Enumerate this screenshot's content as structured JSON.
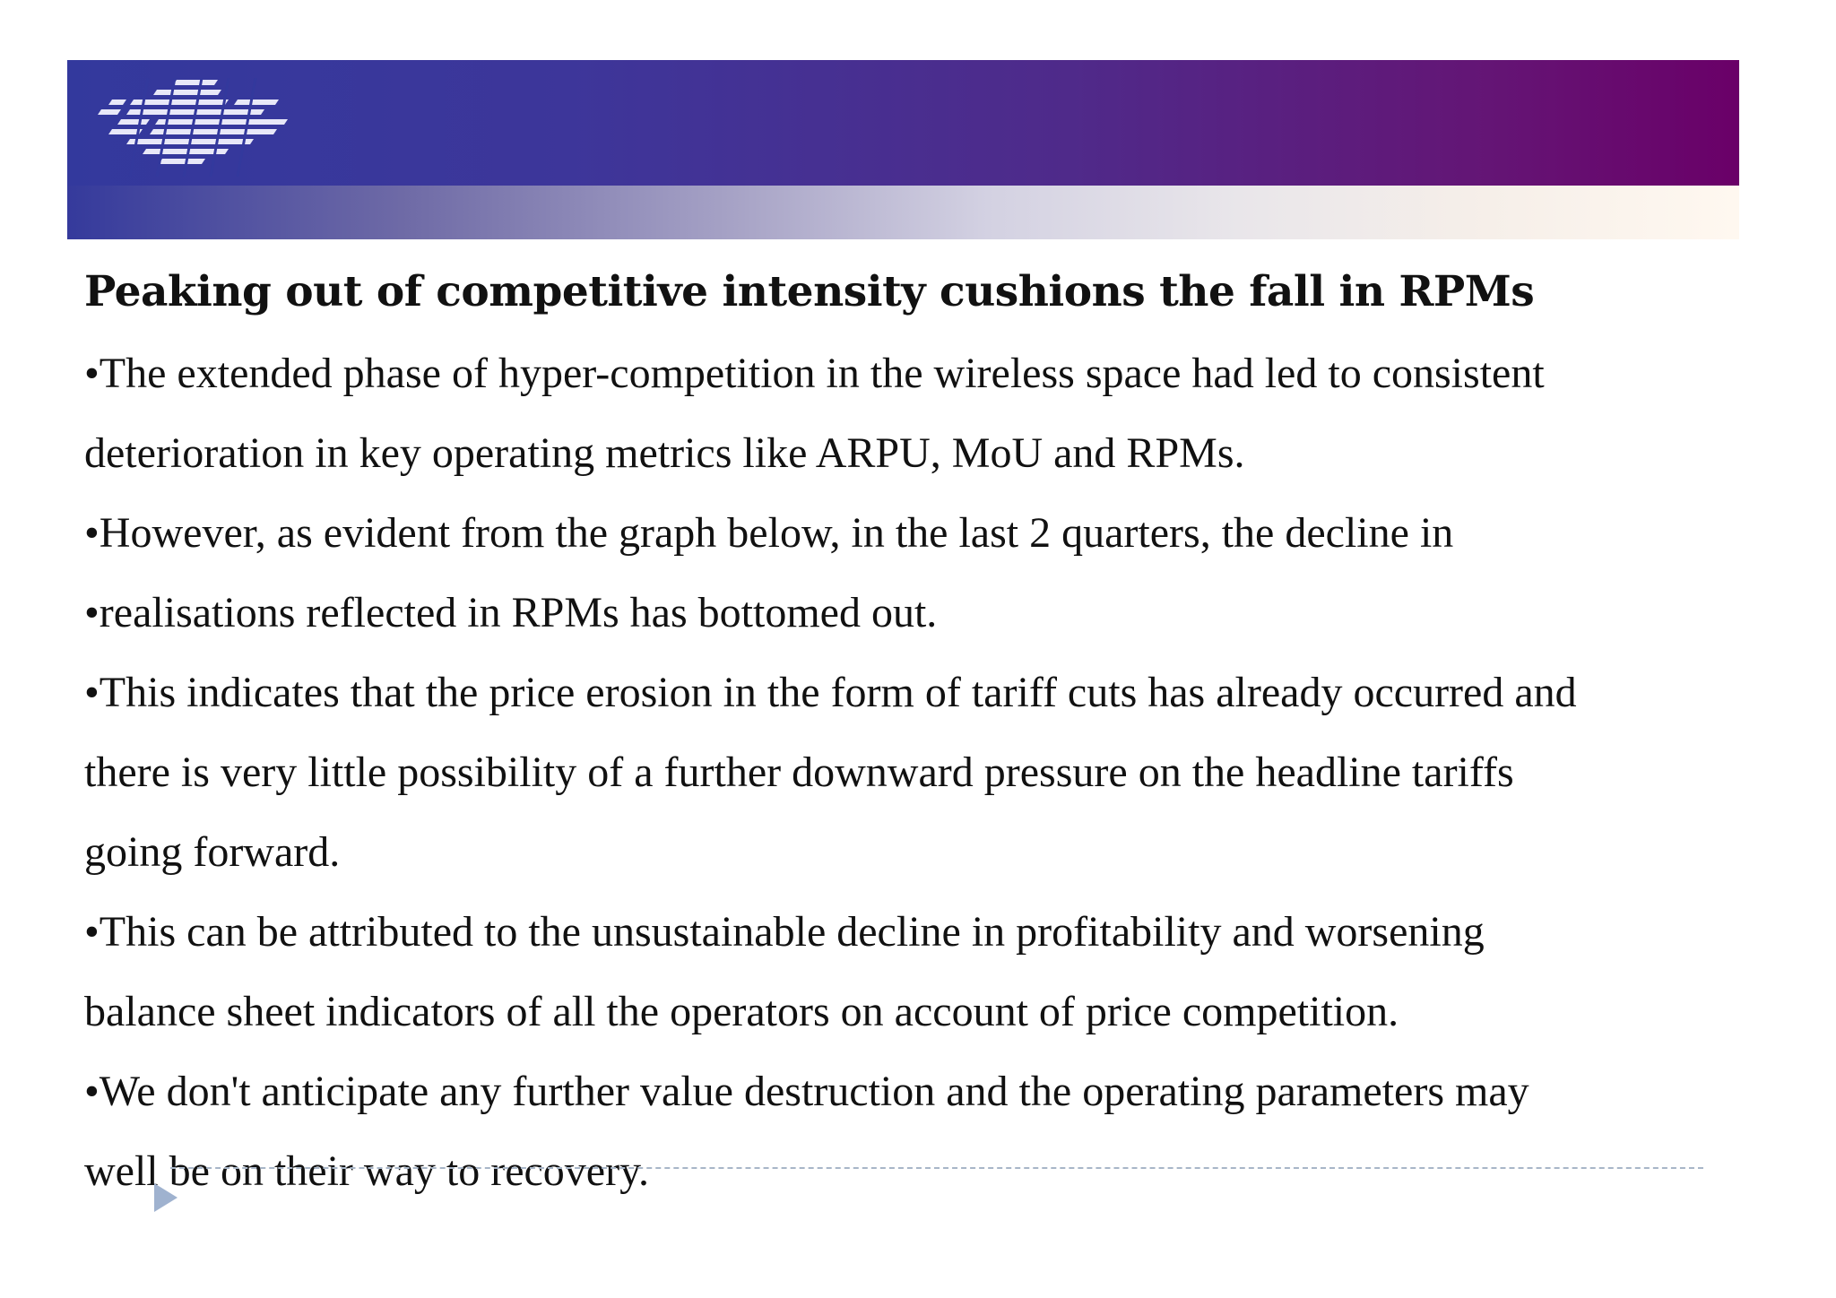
{
  "banner": {
    "logo_icon": "striped-logo-icon",
    "gradient_top": [
      "#33399d",
      "#6a0068"
    ],
    "gradient_bottom": [
      "#353a9c",
      "#fff8f0"
    ]
  },
  "slide": {
    "heading": "Peaking out of competitive intensity cushions the fall in RPMs",
    "lines": [
      "•The extended phase of hyper-competition in the wireless space had led to consistent",
      "deterioration in key operating metrics like ARPU, MoU and RPMs.",
      "•However, as evident from the graph below, in the last 2 quarters, the decline in",
      "•realisations reflected in RPMs has bottomed out.",
      "•This indicates that the price erosion in the form of tariff cuts has already occurred and",
      "there is very little possibility of a further downward pressure on the headline tariffs",
      "going forward.",
      "•This can be attributed to the unsustainable decline in profitability and worsening",
      "balance sheet indicators of all the operators on account of price competition.",
      "•We don't anticipate any further value destruction and the operating parameters may",
      "well be on their way to recovery."
    ]
  },
  "footer": {
    "arrow_icon": "triangle-right-icon",
    "divider_color": "#a8b6c8"
  }
}
